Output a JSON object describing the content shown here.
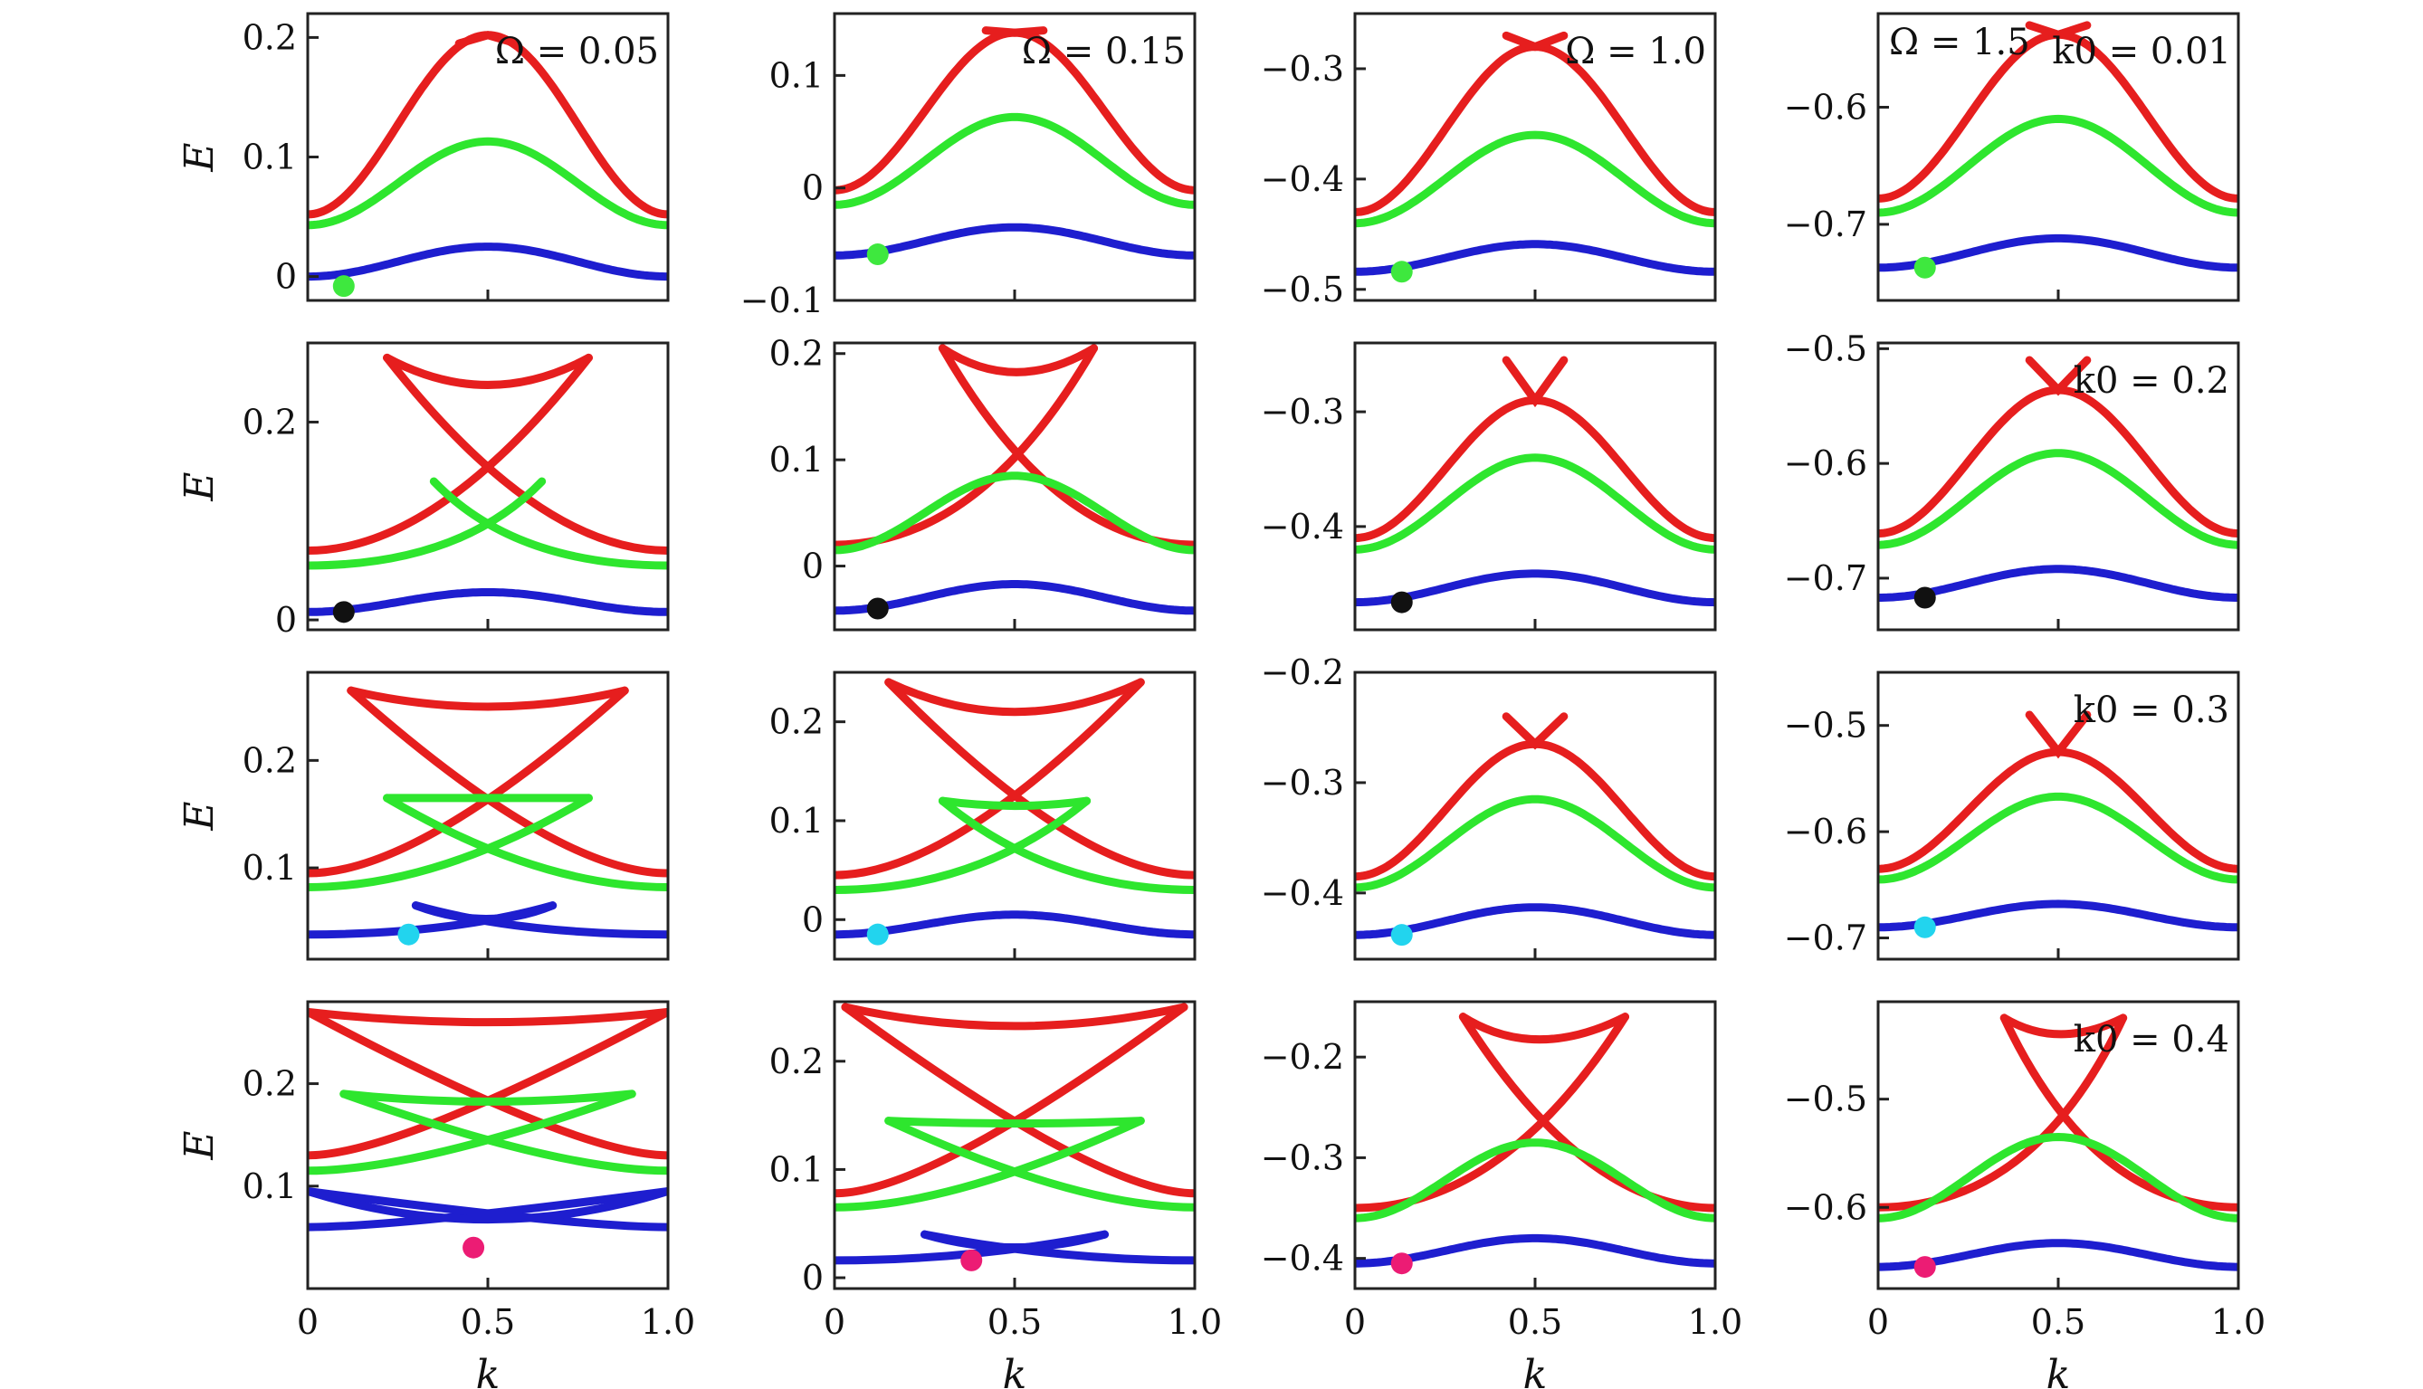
{
  "figure": {
    "xlabel": "k",
    "ylabel": "E",
    "colors": {
      "upper_band": "#e61e1e",
      "middle_band": "#2ee62e",
      "lower_band": "#1e1ecf",
      "frame": "#222222"
    },
    "marker_colors": [
      "#3ee83e",
      "#111111",
      "#22d4ee",
      "#ec1c74"
    ]
  },
  "chart_data": [
    {
      "type": "line",
      "row": 0,
      "col": 0,
      "annotation": "Ω = 0.05",
      "xlim": [
        0,
        1
      ],
      "ylim": [
        -0.02,
        0.22
      ],
      "xticks": [],
      "yticks": [
        {
          "v": 0,
          "label": "0"
        },
        {
          "v": 0.1,
          "label": "0.1"
        },
        {
          "v": 0.2,
          "label": "0.2"
        }
      ],
      "ylabel": "E",
      "bands": {
        "lower": {
          "base": 0.0,
          "amp": 0.025,
          "marker_x": 0.1
        },
        "middle": {
          "base": 0.043,
          "amp": 0.07
        },
        "upper": {
          "base": 0.052,
          "amp": 0.15,
          "cusp": 0.195
        }
      },
      "marker": {
        "x": 0.1,
        "y": -0.008,
        "color": "#3ee83e"
      }
    },
    {
      "type": "line",
      "row": 0,
      "col": 1,
      "annotation": "Ω = 0.15",
      "xlim": [
        -0.1,
        0.15
      ],
      "ylim": [
        -0.1,
        0.155
      ],
      "xticks": [],
      "yticks": [
        {
          "v": -0.1,
          "label": "−0.1"
        },
        {
          "v": 0,
          "label": "0"
        },
        {
          "v": 0.1,
          "label": "0.1"
        }
      ],
      "bands": {
        "lower": {
          "base": -0.06,
          "amp": 0.025
        },
        "middle": {
          "base": -0.015,
          "amp": 0.078
        },
        "upper": {
          "base": -0.002,
          "amp": 0.14,
          "cusp": 0.14
        }
      },
      "marker": {
        "x": 0.12,
        "y": -0.059,
        "color": "#3ee83e"
      }
    },
    {
      "type": "line",
      "row": 0,
      "col": 2,
      "annotation": "Ω = 1.0",
      "xlim": [
        0,
        1
      ],
      "ylim": [
        -0.51,
        -0.25
      ],
      "xticks": [],
      "yticks": [
        {
          "v": -0.5,
          "label": "−0.5"
        },
        {
          "v": -0.4,
          "label": "−0.4"
        },
        {
          "v": -0.3,
          "label": "−0.3"
        }
      ],
      "bands": {
        "lower": {
          "base": -0.484,
          "amp": 0.025
        },
        "middle": {
          "base": -0.44,
          "amp": 0.08
        },
        "upper": {
          "base": -0.43,
          "amp": 0.15,
          "cusp": -0.27
        }
      },
      "marker": {
        "x": 0.13,
        "y": -0.484,
        "color": "#3ee83e"
      }
    },
    {
      "type": "line",
      "row": 0,
      "col": 3,
      "annotation": "Ω = 1.5",
      "annotation2": "k0 = 0.01",
      "xlim": [
        0,
        1
      ],
      "ylim": [
        -0.765,
        -0.52
      ],
      "xticks": [],
      "yticks": [
        {
          "v": -0.7,
          "label": "−0.7"
        },
        {
          "v": -0.6,
          "label": "−0.6"
        }
      ],
      "bands": {
        "lower": {
          "base": -0.737,
          "amp": 0.025
        },
        "middle": {
          "base": -0.69,
          "amp": 0.08
        },
        "upper": {
          "base": -0.678,
          "amp": 0.14,
          "cusp": -0.53
        }
      },
      "marker": {
        "x": 0.13,
        "y": -0.737,
        "color": "#3ee83e"
      }
    },
    {
      "type": "line",
      "row": 1,
      "col": 0,
      "xlim": [
        0,
        1
      ],
      "ylim": [
        -0.01,
        0.28
      ],
      "xticks": [],
      "yticks": [
        {
          "v": 0,
          "label": "0"
        },
        {
          "v": 0.2,
          "label": "0.2"
        }
      ],
      "ylabel": "E",
      "bands": {
        "lower": {
          "base": 0.008,
          "amp": 0.02
        },
        "middle": {
          "base": 0.055,
          "amp": 0.06,
          "loop": [
            0.35,
            0.65,
            0.14
          ]
        },
        "upper": {
          "base": 0.07,
          "amp": 0.14,
          "loop": [
            0.22,
            0.78,
            0.265,
            0.21
          ]
        }
      },
      "marker": {
        "x": 0.1,
        "y": 0.008,
        "color": "#111111"
      }
    },
    {
      "type": "line",
      "row": 1,
      "col": 1,
      "xlim": [
        0,
        1
      ],
      "ylim": [
        -0.06,
        0.21
      ],
      "xticks": [],
      "yticks": [
        {
          "v": 0,
          "label": "0"
        },
        {
          "v": 0.1,
          "label": "0.1"
        },
        {
          "v": 0.2,
          "label": "0.2"
        }
      ],
      "bands": {
        "lower": {
          "base": -0.042,
          "amp": 0.025
        },
        "middle": {
          "base": 0.015,
          "amp": 0.07
        },
        "upper": {
          "base": 0.02,
          "amp": 0.09,
          "loop": [
            0.3,
            0.72,
            0.205,
            0.16
          ]
        }
      },
      "marker": {
        "x": 0.12,
        "y": -0.04,
        "color": "#111111"
      }
    },
    {
      "type": "line",
      "row": 1,
      "col": 2,
      "xlim": [
        0,
        1
      ],
      "ylim": [
        -0.49,
        -0.24
      ],
      "xticks": [],
      "yticks": [
        {
          "v": -0.4,
          "label": "−0.4"
        },
        {
          "v": -0.3,
          "label": "−0.3"
        }
      ],
      "bands": {
        "lower": {
          "base": -0.466,
          "amp": 0.025
        },
        "middle": {
          "base": -0.42,
          "amp": 0.08
        },
        "upper": {
          "base": -0.41,
          "amp": 0.12,
          "cusp": -0.255
        }
      },
      "marker": {
        "x": 0.13,
        "y": -0.466,
        "color": "#111111"
      }
    },
    {
      "type": "line",
      "row": 1,
      "col": 3,
      "annotation": "k0 = 0.2",
      "xlim": [
        0,
        1
      ],
      "ylim": [
        -0.745,
        -0.495
      ],
      "xticks": [],
      "yticks": [
        {
          "v": -0.7,
          "label": "−0.7"
        },
        {
          "v": -0.6,
          "label": "−0.6"
        },
        {
          "v": -0.5,
          "label": "−0.5"
        }
      ],
      "bands": {
        "lower": {
          "base": -0.717,
          "amp": 0.025
        },
        "middle": {
          "base": -0.671,
          "amp": 0.08
        },
        "upper": {
          "base": -0.661,
          "amp": 0.125,
          "cusp": -0.51
        }
      },
      "marker": {
        "x": 0.13,
        "y": -0.717,
        "color": "#111111"
      }
    },
    {
      "type": "line",
      "row": 2,
      "col": 0,
      "xlim": [
        0,
        1
      ],
      "ylim": [
        0.015,
        0.282
      ],
      "xticks": [],
      "yticks": [
        {
          "v": 0.1,
          "label": "0.1"
        },
        {
          "v": 0.2,
          "label": "0.2"
        }
      ],
      "ylabel": "E",
      "bands": {
        "lower": {
          "base": 0.038,
          "amp": 0.0,
          "loop": [
            0.3,
            0.68,
            0.065,
            0.04
          ]
        },
        "middle": {
          "base": 0.082,
          "amp": 0.0,
          "loop": [
            0.22,
            0.78,
            0.165,
            0.165
          ]
        },
        "upper": {
          "base": 0.095,
          "amp": 0.0,
          "loop": [
            0.12,
            0.88,
            0.265,
            0.235
          ]
        }
      },
      "marker": {
        "x": 0.28,
        "y": 0.038,
        "color": "#22d4ee"
      }
    },
    {
      "type": "line",
      "row": 2,
      "col": 1,
      "xlim": [
        0,
        1
      ],
      "ylim": [
        -0.04,
        0.25
      ],
      "xticks": [],
      "yticks": [
        {
          "v": 0,
          "label": "0"
        },
        {
          "v": 0.1,
          "label": "0.1"
        },
        {
          "v": 0.2,
          "label": "0.2"
        }
      ],
      "bands": {
        "lower": {
          "base": -0.015,
          "amp": 0.02
        },
        "middle": {
          "base": 0.03,
          "amp": 0.0,
          "loop": [
            0.3,
            0.7,
            0.12,
            0.11
          ]
        },
        "upper": {
          "base": 0.045,
          "amp": 0.0,
          "loop": [
            0.15,
            0.85,
            0.24,
            0.18
          ]
        }
      },
      "marker": {
        "x": 0.12,
        "y": -0.015,
        "color": "#22d4ee"
      }
    },
    {
      "type": "line",
      "row": 2,
      "col": 2,
      "xlim": [
        0,
        1
      ],
      "ylim": [
        -0.46,
        -0.2
      ],
      "xticks": [],
      "yticks": [
        {
          "v": -0.4,
          "label": "−0.4"
        },
        {
          "v": -0.3,
          "label": "−0.3"
        },
        {
          "v": -0.2,
          "label": "−0.2"
        }
      ],
      "bands": {
        "lower": {
          "base": -0.438,
          "amp": 0.025
        },
        "middle": {
          "base": -0.395,
          "amp": 0.08
        },
        "upper": {
          "base": -0.385,
          "amp": 0.12,
          "cusp": -0.24
        }
      },
      "marker": {
        "x": 0.13,
        "y": -0.438,
        "color": "#22d4ee"
      }
    },
    {
      "type": "line",
      "row": 2,
      "col": 3,
      "annotation": "k0 = 0.3",
      "xlim": [
        0,
        1
      ],
      "ylim": [
        -0.72,
        -0.45
      ],
      "xticks": [],
      "yticks": [
        {
          "v": -0.7,
          "label": "−0.7"
        },
        {
          "v": -0.6,
          "label": "−0.6"
        },
        {
          "v": -0.5,
          "label": "−0.5"
        }
      ],
      "bands": {
        "lower": {
          "base": -0.69,
          "amp": 0.022
        },
        "middle": {
          "base": -0.645,
          "amp": 0.078
        },
        "upper": {
          "base": -0.635,
          "amp": 0.11,
          "cusp": -0.49
        }
      },
      "marker": {
        "x": 0.13,
        "y": -0.69,
        "color": "#22d4ee"
      }
    },
    {
      "type": "line",
      "row": 3,
      "col": 0,
      "xlim": [
        0,
        1
      ],
      "ylim": [
        0.0,
        0.28
      ],
      "xticks": [
        {
          "v": 0,
          "label": "0"
        },
        {
          "v": 0.5,
          "label": "0.5"
        },
        {
          "v": 1,
          "label": "1.0"
        }
      ],
      "yticks": [
        {
          "v": 0.1,
          "label": "0.1"
        },
        {
          "v": 0.2,
          "label": "0.2"
        }
      ],
      "ylabel": "E",
      "xlabel": "k",
      "bands": {
        "lower": {
          "base": 0.06,
          "amp": 0.0,
          "loop": [
            0.0,
            1.0,
            0.095,
            0.04
          ]
        },
        "middle": {
          "base": 0.115,
          "amp": 0.0,
          "loop": [
            0.1,
            0.9,
            0.19,
            0.175
          ]
        },
        "upper": {
          "base": 0.13,
          "amp": 0.0,
          "loop": [
            0.0,
            1.0,
            0.27,
            0.25
          ]
        }
      },
      "marker": {
        "x": 0.46,
        "y": 0.04,
        "color": "#ec1c74"
      }
    },
    {
      "type": "line",
      "row": 3,
      "col": 1,
      "xlim": [
        0,
        1
      ],
      "ylim": [
        -0.01,
        0.255
      ],
      "xticks": [
        {
          "v": 0,
          "label": "0"
        },
        {
          "v": 0.5,
          "label": "0.5"
        },
        {
          "v": 1,
          "label": "1.0"
        }
      ],
      "yticks": [
        {
          "v": 0,
          "label": "0"
        },
        {
          "v": 0.1,
          "label": "0.1"
        },
        {
          "v": 0.2,
          "label": "0.2"
        }
      ],
      "xlabel": "k",
      "bands": {
        "lower": {
          "base": 0.016,
          "amp": 0.0,
          "loop": [
            0.25,
            0.75,
            0.04,
            0.016
          ]
        },
        "middle": {
          "base": 0.065,
          "amp": 0.0,
          "loop": [
            0.15,
            0.85,
            0.145,
            0.14
          ]
        },
        "upper": {
          "base": 0.078,
          "amp": 0.0,
          "loop": [
            0.03,
            0.97,
            0.25,
            0.215
          ]
        }
      },
      "marker": {
        "x": 0.38,
        "y": 0.016,
        "color": "#ec1c74"
      }
    },
    {
      "type": "line",
      "row": 3,
      "col": 2,
      "xlim": [
        0,
        1
      ],
      "ylim": [
        -0.43,
        -0.145
      ],
      "xticks": [
        {
          "v": 0,
          "label": "0"
        },
        {
          "v": 0.5,
          "label": "0.5"
        },
        {
          "v": 1,
          "label": "1.0"
        }
      ],
      "yticks": [
        {
          "v": -0.4,
          "label": "−0.4"
        },
        {
          "v": -0.3,
          "label": "−0.3"
        },
        {
          "v": -0.2,
          "label": "−0.2"
        }
      ],
      "xlabel": "k",
      "bands": {
        "lower": {
          "base": -0.405,
          "amp": 0.025
        },
        "middle": {
          "base": -0.36,
          "amp": 0.075
        },
        "upper": {
          "base": -0.35,
          "amp": 0.095,
          "loop": [
            0.3,
            0.75,
            -0.16,
            -0.205
          ]
        }
      },
      "marker": {
        "x": 0.13,
        "y": -0.405,
        "color": "#ec1c74"
      }
    },
    {
      "type": "line",
      "row": 3,
      "col": 3,
      "annotation": "k0 = 0.4",
      "xlim": [
        0,
        1
      ],
      "ylim": [
        -0.675,
        -0.41
      ],
      "xticks": [
        {
          "v": 0,
          "label": "0"
        },
        {
          "v": 0.5,
          "label": "0.5"
        },
        {
          "v": 1,
          "label": "1.0"
        }
      ],
      "yticks": [
        {
          "v": -0.6,
          "label": "−0.6"
        },
        {
          "v": -0.5,
          "label": "−0.5"
        }
      ],
      "xlabel": "k",
      "bands": {
        "lower": {
          "base": -0.655,
          "amp": 0.022
        },
        "middle": {
          "base": -0.61,
          "amp": 0.075
        },
        "upper": {
          "base": -0.6,
          "amp": 0.1,
          "loop": [
            0.35,
            0.68,
            -0.425,
            -0.455
          ]
        }
      },
      "marker": {
        "x": 0.13,
        "y": -0.655,
        "color": "#ec1c74"
      }
    }
  ]
}
